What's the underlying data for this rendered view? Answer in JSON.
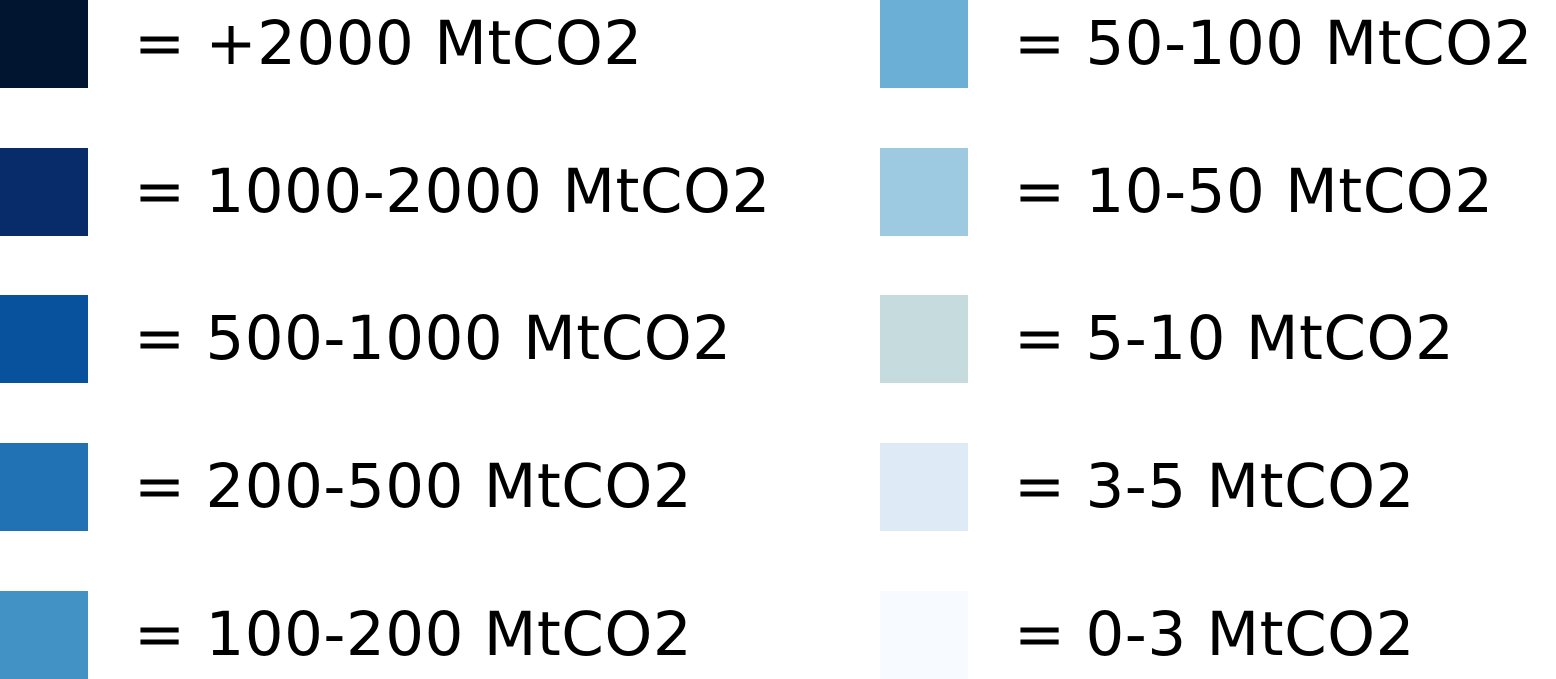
{
  "chart_data": {
    "type": "legend",
    "title": "",
    "unit": "MtCO2",
    "entries": [
      {
        "label": "= +2000 MtCO2",
        "color": "#011530",
        "range": [
          2000,
          null
        ]
      },
      {
        "label": "= 1000-2000 MtCO2",
        "color": "#082C69",
        "range": [
          1000,
          2000
        ]
      },
      {
        "label": "= 500-1000 MtCO2",
        "color": "#08519C",
        "range": [
          500,
          1000
        ]
      },
      {
        "label": "= 200-500 MtCO2",
        "color": "#2171B5",
        "range": [
          200,
          500
        ]
      },
      {
        "label": "= 100-200 MtCO2",
        "color": "#4292C6",
        "range": [
          100,
          200
        ]
      },
      {
        "label": "= 50-100 MtCO2",
        "color": "#6BAED6",
        "range": [
          50,
          100
        ]
      },
      {
        "label": "= 10-50 MtCO2",
        "color": "#9ECAE1",
        "range": [
          10,
          50
        ]
      },
      {
        "label": "= 5-10 MtCO2",
        "color": "#C6DBDE",
        "range": [
          5,
          10
        ]
      },
      {
        "label": "= 3-5 MtCO2",
        "color": "#DEEBF7",
        "range": [
          3,
          5
        ]
      },
      {
        "label": "= 0-3 MtCO2",
        "color": "#F7FBFF",
        "range": [
          0,
          3
        ]
      }
    ]
  }
}
